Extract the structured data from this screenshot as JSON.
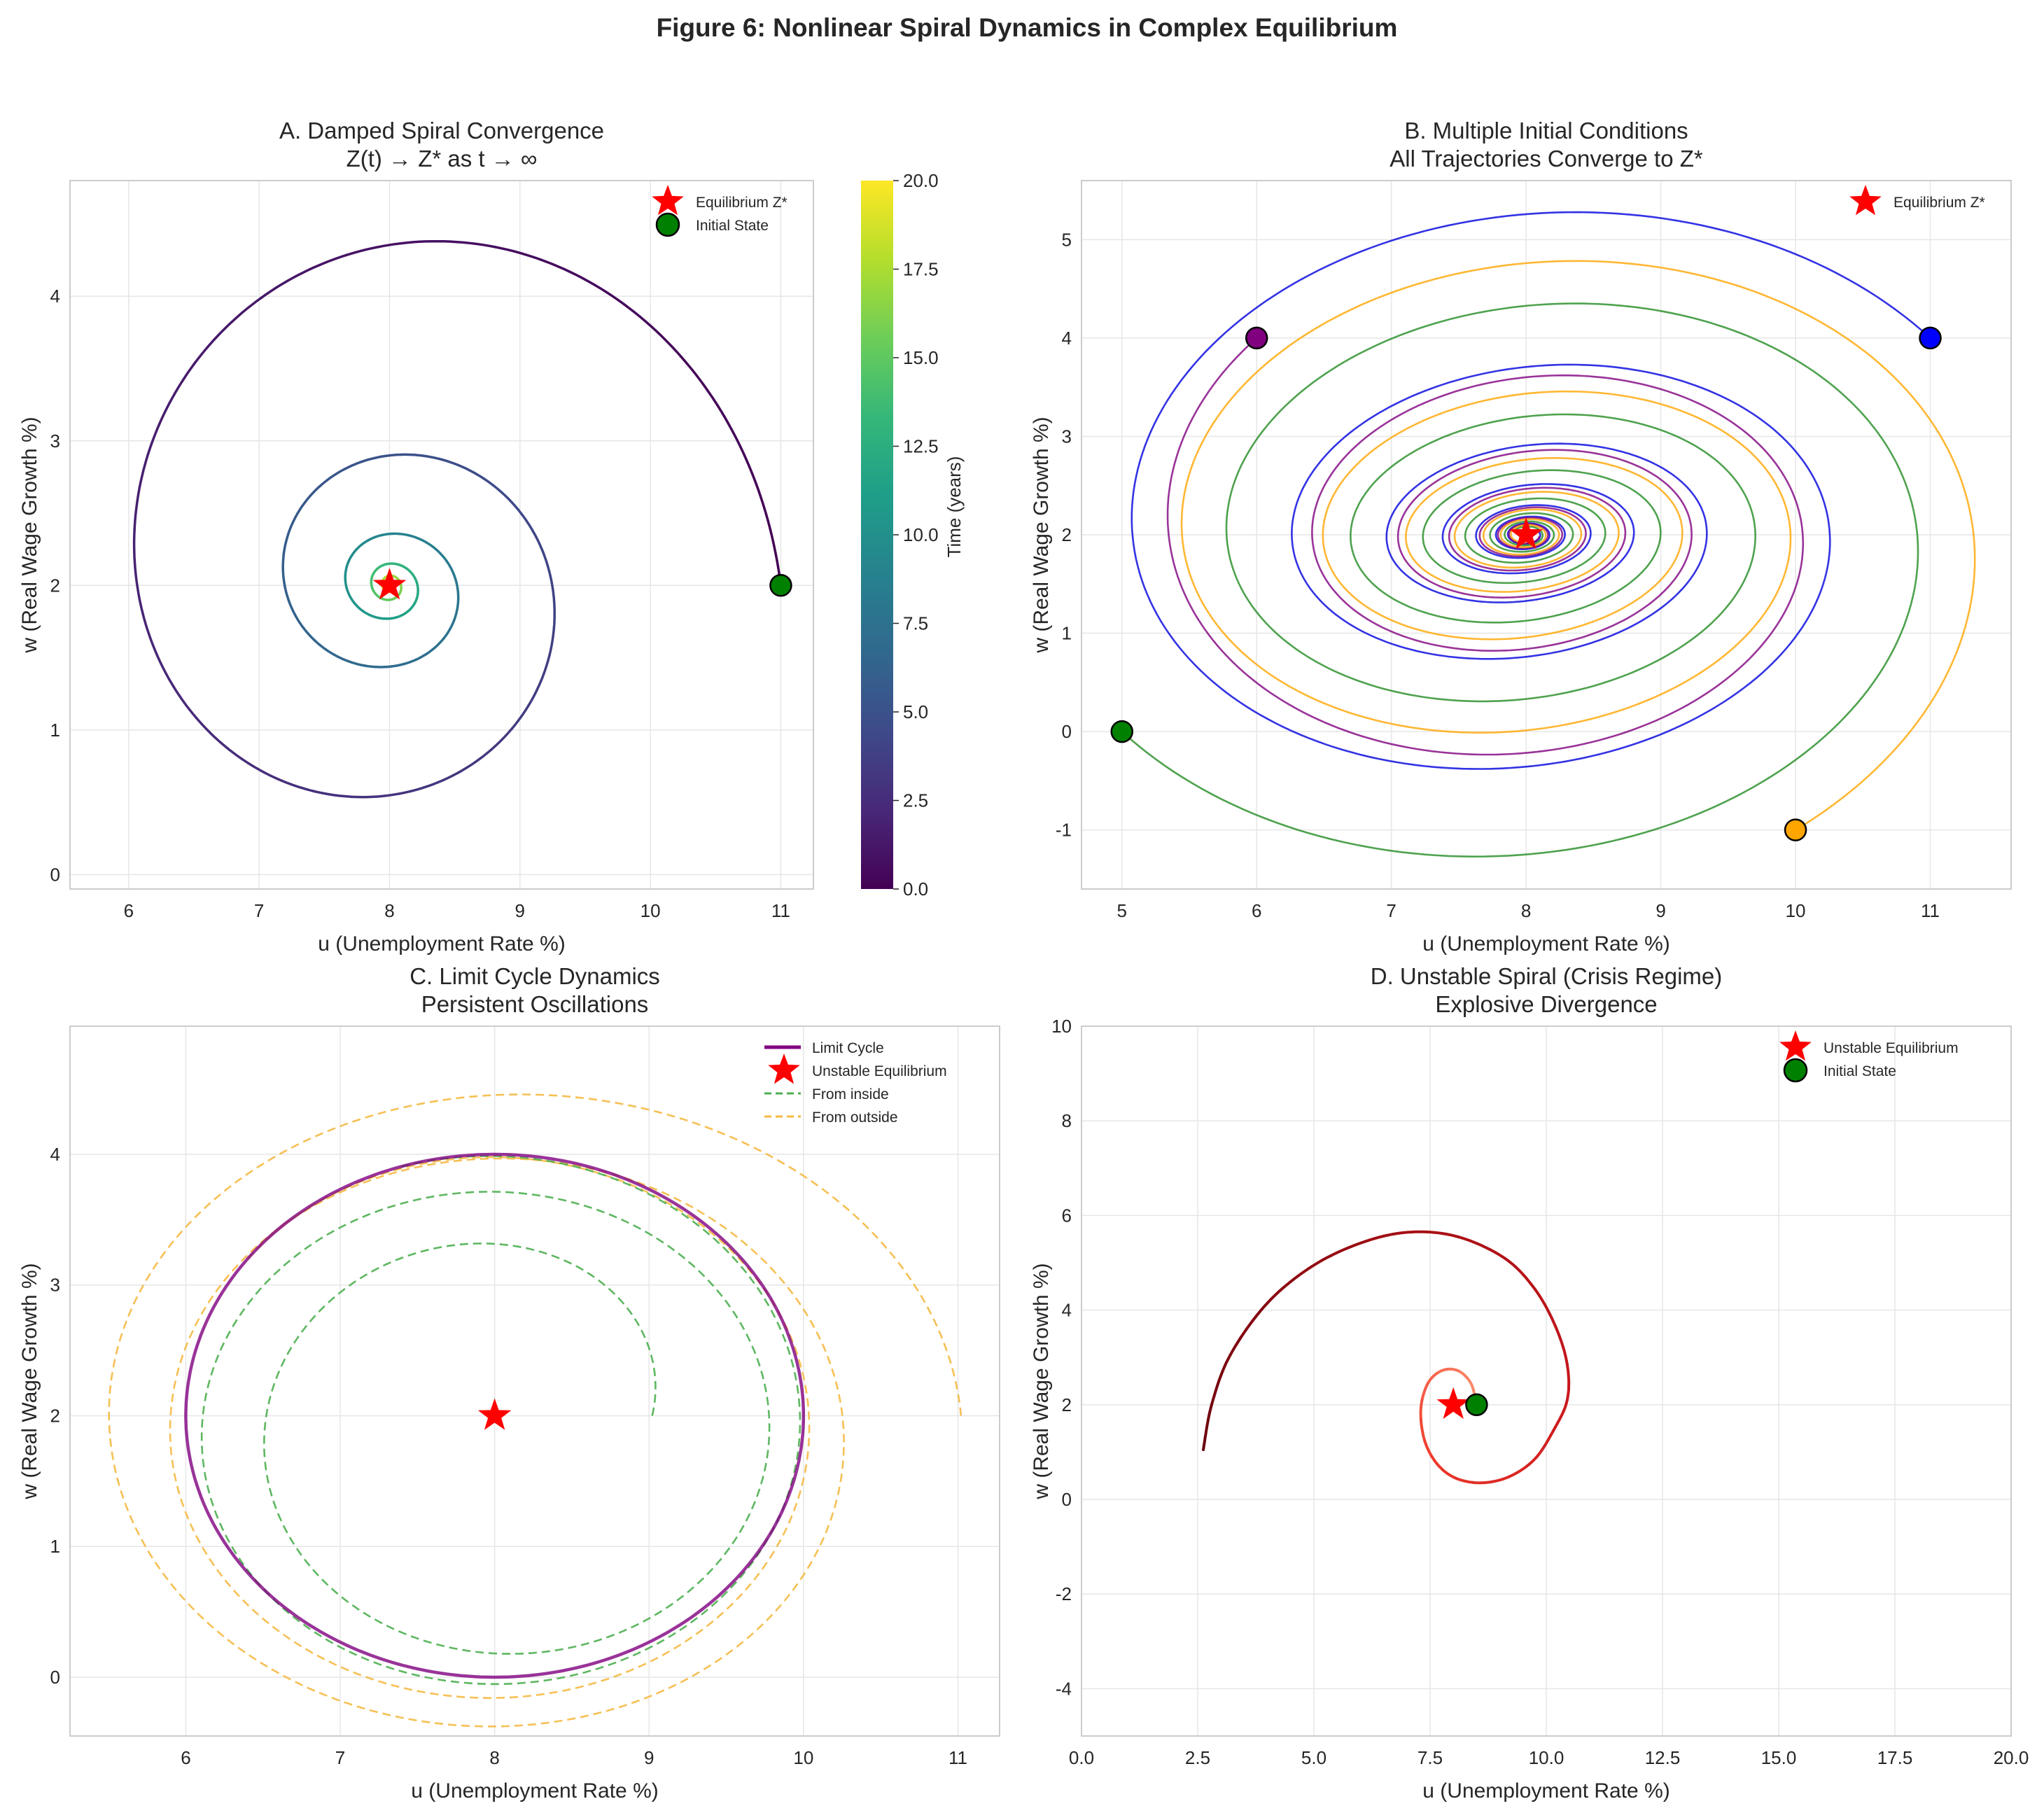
{
  "figure_title": "Figure 6: Nonlinear Spiral Dynamics in Complex Equilibrium",
  "colors": {
    "equilibrium": "#ff0000",
    "initial_state": "#008000",
    "grid": "#e6e6e6",
    "axes": "#cccccc"
  },
  "chart_data": [
    {
      "id": "A",
      "type": "line",
      "title": "A. Damped Spiral Convergence",
      "subtitle": "Z(t) → Z* as t → ∞",
      "xlabel": "u (Unemployment Rate %)",
      "ylabel": "w (Real Wage Growth %)",
      "xlim": [
        5.55,
        11.25
      ],
      "ylim": [
        -0.1,
        4.8
      ],
      "xticks": [
        {
          "v": 6,
          "label": "6"
        },
        {
          "v": 7,
          "label": "7"
        },
        {
          "v": 8,
          "label": "8"
        },
        {
          "v": 9,
          "label": "9"
        },
        {
          "v": 10,
          "label": "10"
        },
        {
          "v": 11,
          "label": "11"
        }
      ],
      "yticks": [
        {
          "v": 0,
          "label": "0"
        },
        {
          "v": 1,
          "label": "1"
        },
        {
          "v": 2,
          "label": "2"
        },
        {
          "v": 3,
          "label": "3"
        },
        {
          "v": 4,
          "label": "4"
        }
      ],
      "series": [
        {
          "name": "Trajectory (colored by time)",
          "kind": "spiral",
          "colormap": "viridis",
          "center": [
            8,
            2
          ],
          "start": [
            11,
            2
          ],
          "revolutions": 4.9,
          "rx_end": 0.04,
          "ry_end": 0.04,
          "squeeze": 0.15,
          "phase_shift": 0.1,
          "width": 3.5
        }
      ],
      "markers": [
        {
          "name": "Equilibrium Z*",
          "kind": "star",
          "x": 8,
          "y": 2,
          "color": "#ff0000"
        },
        {
          "name": "Initial State",
          "kind": "circle",
          "x": 11,
          "y": 2,
          "color": "#008000"
        }
      ],
      "legend": {
        "position": "top-right",
        "entries": [
          {
            "label": "Equilibrium Z*",
            "kind": "star",
            "color": "#ff0000"
          },
          {
            "label": "Initial State",
            "kind": "circle",
            "color": "#008000"
          }
        ]
      },
      "colorbar": {
        "label": "Time (years)",
        "range": [
          0,
          20
        ],
        "ticks": [
          {
            "v": 0,
            "label": "0.0"
          },
          {
            "v": 2.5,
            "label": "2.5"
          },
          {
            "v": 5,
            "label": "5.0"
          },
          {
            "v": 7.5,
            "label": "7.5"
          },
          {
            "v": 10,
            "label": "10.0"
          },
          {
            "v": 12.5,
            "label": "12.5"
          },
          {
            "v": 15,
            "label": "15.0"
          },
          {
            "v": 17.5,
            "label": "17.5"
          },
          {
            "v": 20,
            "label": "20.0"
          }
        ]
      }
    },
    {
      "id": "B",
      "type": "line",
      "title": "B. Multiple Initial Conditions",
      "subtitle": "All Trajectories Converge to Z*",
      "xlabel": "u (Unemployment Rate %)",
      "ylabel": "w (Real Wage Growth %)",
      "xlim": [
        4.7,
        11.6
      ],
      "ylim": [
        -1.6,
        5.6
      ],
      "xticks": [
        {
          "v": 5,
          "label": "5"
        },
        {
          "v": 6,
          "label": "6"
        },
        {
          "v": 7,
          "label": "7"
        },
        {
          "v": 8,
          "label": "8"
        },
        {
          "v": 9,
          "label": "9"
        },
        {
          "v": 10,
          "label": "10"
        },
        {
          "v": 11,
          "label": "11"
        }
      ],
      "yticks": [
        {
          "v": -1,
          "label": "-1"
        },
        {
          "v": 0,
          "label": "0"
        },
        {
          "v": 1,
          "label": "1"
        },
        {
          "v": 2,
          "label": "2"
        },
        {
          "v": 3,
          "label": "3"
        },
        {
          "v": 4,
          "label": "4"
        },
        {
          "v": 5,
          "label": "5"
        }
      ],
      "series": [
        {
          "name": "From (11, 4)",
          "kind": "spiral",
          "color": "#0000dd",
          "center": [
            8,
            2
          ],
          "start": [
            11,
            4
          ],
          "revolutions": 7,
          "rx_end": 0.1,
          "ry_end": 0.08,
          "squeeze": 0.2,
          "phase_shift": -0.25,
          "width": 2.6
        },
        {
          "name": "From (6, 4)",
          "kind": "spiral",
          "color": "#800080",
          "center": [
            8,
            2
          ],
          "start": [
            6,
            4
          ],
          "revolutions": 6.6,
          "rx_end": 0.1,
          "ry_end": 0.08,
          "squeeze": 0.2,
          "phase_shift": -0.25,
          "width": 2.6
        },
        {
          "name": "From (5, 0)",
          "kind": "spiral",
          "color": "#228b22",
          "center": [
            8,
            2
          ],
          "start": [
            5,
            0
          ],
          "revolutions": 6.8,
          "rx_end": 0.1,
          "ry_end": 0.08,
          "squeeze": 0.2,
          "phase_shift": -0.25,
          "width": 2.6
        },
        {
          "name": "From (10, -1)",
          "kind": "spiral",
          "color": "#ffa500",
          "center": [
            8,
            2
          ],
          "start": [
            10,
            -1
          ],
          "revolutions": 6.9,
          "rx_end": 0.1,
          "ry_end": 0.08,
          "squeeze": 0.2,
          "phase_shift": -0.25,
          "width": 2.6
        }
      ],
      "markers": [
        {
          "name": "Start (11, 4)",
          "kind": "circle",
          "x": 11,
          "y": 4,
          "color": "#0000ff"
        },
        {
          "name": "Start (6, 4)",
          "kind": "circle",
          "x": 6,
          "y": 4,
          "color": "#800080"
        },
        {
          "name": "Start (5, 0)",
          "kind": "circle",
          "x": 5,
          "y": 0,
          "color": "#008000"
        },
        {
          "name": "Start (10, -1)",
          "kind": "circle",
          "x": 10,
          "y": -1,
          "color": "#ffa500"
        },
        {
          "name": "Equilibrium Z*",
          "kind": "star",
          "x": 8,
          "y": 2,
          "color": "#ff0000"
        }
      ],
      "legend": {
        "position": "top-right",
        "entries": [
          {
            "label": "Equilibrium Z*",
            "kind": "star",
            "color": "#ff0000"
          }
        ]
      }
    },
    {
      "id": "C",
      "type": "line",
      "title": "C. Limit Cycle Dynamics",
      "subtitle": "Persistent Oscillations",
      "xlabel": "u (Unemployment Rate %)",
      "ylabel": "w (Real Wage Growth %)",
      "xlim": [
        5.25,
        11.27
      ],
      "ylim": [
        -0.45,
        4.98
      ],
      "xticks": [
        {
          "v": 6,
          "label": "6"
        },
        {
          "v": 7,
          "label": "7"
        },
        {
          "v": 8,
          "label": "8"
        },
        {
          "v": 9,
          "label": "9"
        },
        {
          "v": 10,
          "label": "10"
        },
        {
          "v": 11,
          "label": "11"
        }
      ],
      "yticks": [
        {
          "v": 0,
          "label": "0"
        },
        {
          "v": 1,
          "label": "1"
        },
        {
          "v": 2,
          "label": "2"
        },
        {
          "v": 3,
          "label": "3"
        },
        {
          "v": 4,
          "label": "4"
        }
      ],
      "series": [
        {
          "name": "From outside",
          "kind": "approach",
          "color": "#f5b942",
          "dash": true,
          "center": [
            8,
            2
          ],
          "start": [
            11,
            2
          ],
          "rx0": 3.0,
          "ry0": 2.7,
          "rx1": 2.0,
          "ry1": 2.0,
          "turns": 2.4,
          "phase_shift": 0.1,
          "width": 2.6
        },
        {
          "name": "From inside",
          "kind": "approach",
          "color": "#4caf50",
          "dash": true,
          "center": [
            8,
            2
          ],
          "start": [
            9,
            2
          ],
          "rx0": 1.0,
          "ry0": 1.1,
          "rx1": 2.0,
          "ry1": 2.0,
          "turns": 2.3,
          "phase_shift": 0.1,
          "width": 2.6
        },
        {
          "name": "Limit Cycle",
          "kind": "ellipse",
          "color": "#800080",
          "cx": 8,
          "cy": 2,
          "rx": 2.0,
          "ry": 2.0,
          "width": 4.5
        }
      ],
      "markers": [
        {
          "name": "Unstable Equilibrium",
          "kind": "star",
          "x": 8,
          "y": 2,
          "color": "#ff0000"
        }
      ],
      "legend": {
        "position": "top-right",
        "entries": [
          {
            "label": "Limit Cycle",
            "kind": "line",
            "color": "#800080"
          },
          {
            "label": "Unstable Equilibrium",
            "kind": "star",
            "color": "#ff0000"
          },
          {
            "label": "From inside",
            "kind": "dash",
            "color": "#4caf50"
          },
          {
            "label": "From outside",
            "kind": "dash",
            "color": "#f5b942"
          }
        ]
      }
    },
    {
      "id": "D",
      "type": "line",
      "title": "D. Unstable Spiral (Crisis Regime)",
      "subtitle": "Explosive Divergence",
      "xlabel": "u (Unemployment Rate %)",
      "ylabel": "w (Real Wage Growth %)",
      "xlim": [
        0,
        20
      ],
      "ylim": [
        -5,
        10
      ],
      "xticks": [
        {
          "v": 0,
          "label": "0.0"
        },
        {
          "v": 2.5,
          "label": "2.5"
        },
        {
          "v": 5,
          "label": "5.0"
        },
        {
          "v": 7.5,
          "label": "7.5"
        },
        {
          "v": 10,
          "label": "10.0"
        },
        {
          "v": 12.5,
          "label": "12.5"
        },
        {
          "v": 15,
          "label": "15.0"
        },
        {
          "v": 17.5,
          "label": "17.5"
        },
        {
          "v": 20,
          "label": "20.0"
        }
      ],
      "yticks": [
        {
          "v": -4,
          "label": "-4"
        },
        {
          "v": -2,
          "label": "-2"
        },
        {
          "v": 0,
          "label": "0"
        },
        {
          "v": 2,
          "label": "2"
        },
        {
          "v": 4,
          "label": "4"
        },
        {
          "v": 6,
          "label": "6"
        },
        {
          "v": 8,
          "label": "8"
        },
        {
          "v": 10,
          "label": "10"
        }
      ],
      "series": [
        {
          "name": "Divergent trajectory",
          "kind": "polyline",
          "colormap": "reds",
          "width": 4,
          "points": [
            [
              8.5,
              2
            ],
            [
              8.38,
              2.45
            ],
            [
              8.1,
              2.72
            ],
            [
              7.75,
              2.72
            ],
            [
              7.45,
              2.45
            ],
            [
              7.3,
              1.9
            ],
            [
              7.38,
              1.25
            ],
            [
              7.65,
              0.75
            ],
            [
              8.05,
              0.45
            ],
            [
              8.6,
              0.35
            ],
            [
              9.2,
              0.48
            ],
            [
              9.75,
              0.85
            ],
            [
              10.15,
              1.45
            ],
            [
              10.45,
              2.1
            ],
            [
              10.45,
              2.85
            ],
            [
              10.2,
              3.65
            ],
            [
              9.75,
              4.45
            ],
            [
              9.1,
              5.1
            ],
            [
              8.1,
              5.55
            ],
            [
              7.1,
              5.65
            ],
            [
              6.1,
              5.45
            ],
            [
              5.0,
              4.95
            ],
            [
              4.0,
              4.15
            ],
            [
              3.2,
              3.05
            ],
            [
              2.8,
              2.0
            ],
            [
              2.62,
              1.05
            ]
          ]
        }
      ],
      "markers": [
        {
          "name": "Unstable Equilibrium",
          "kind": "star",
          "x": 8,
          "y": 2,
          "color": "#ff0000"
        },
        {
          "name": "Initial State",
          "kind": "circle",
          "x": 8.5,
          "y": 2,
          "color": "#008000"
        }
      ],
      "legend": {
        "position": "top-right",
        "entries": [
          {
            "label": "Unstable Equilibrium",
            "kind": "star",
            "color": "#ff0000"
          },
          {
            "label": "Initial State",
            "kind": "circle",
            "color": "#008000"
          }
        ]
      }
    }
  ]
}
